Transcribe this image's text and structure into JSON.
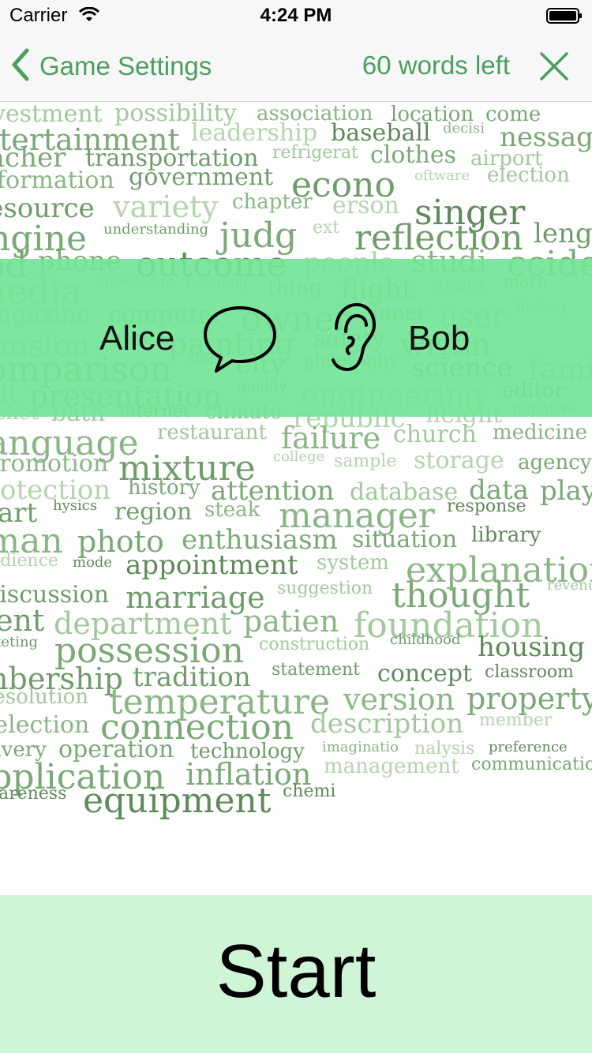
{
  "status_bar": {
    "carrier": "Carrier",
    "time": "4:24 PM"
  },
  "nav": {
    "back_label": "Game Settings",
    "words_left": "60 words left"
  },
  "players": {
    "speaker": "Alice",
    "listener": "Bob"
  },
  "start_label": "Start",
  "colors": {
    "accent": "#4a9f5e",
    "band": "#74e498",
    "start_bg": "#c8f4d2"
  },
  "word_cloud": [
    "vestment",
    "possibility",
    "association",
    "location",
    "come",
    "entertainment",
    "leadership",
    "baseball",
    "decisi",
    "nessage",
    "teacher",
    "transportation",
    "refrigerat",
    "clothes",
    "airport",
    "information",
    "government",
    "econo",
    "oftware",
    "election",
    "resource",
    "variety",
    "chapter",
    "erson",
    "singer",
    "engine",
    "understanding",
    "judg",
    "ext",
    "reflection",
    "length",
    "od",
    "phone",
    "outcome",
    "people",
    "studi",
    "ccident",
    "media",
    "knowledge",
    "teaching",
    "thing",
    "flight",
    "ategory",
    "math",
    "magazine",
    "computer",
    "owner",
    "inner",
    "user",
    "finding",
    "tension",
    "theory",
    "painting",
    "safety",
    "writin",
    "comparison",
    "story",
    "city",
    "philosophy",
    "science",
    "family",
    "unit",
    "presentation",
    "quality",
    "engineering",
    "editor",
    "basket",
    "bath",
    "internet",
    "climate",
    "republic",
    "height",
    "initiative",
    "language",
    "restaurant",
    "failure",
    "church",
    "medicine",
    "promotion",
    "mixture",
    "college",
    "sample",
    "storage",
    "agency",
    "protection",
    "history",
    "attention",
    "database",
    "data",
    "player",
    "heart",
    "hysics",
    "region",
    "steak",
    "manager",
    "response",
    "oman",
    "photo",
    "enthusiasm",
    "situation",
    "library",
    "audience",
    "mode",
    "appointment",
    "system",
    "explanation",
    "discussion",
    "marriage",
    "suggestion",
    "thought",
    "revenue",
    "event",
    "department",
    "patien",
    "foundation",
    "marketing",
    "possession",
    "construction",
    "childhood",
    "housing",
    "embership",
    "tradition",
    "statement",
    "concept",
    "classroom",
    "resolution",
    "temperature",
    "version",
    "property",
    "selection",
    "connection",
    "description",
    "member",
    "delivery",
    "operation",
    "technology",
    "imaginatio",
    "nalysis",
    "preference",
    "application",
    "inflation",
    "management",
    "communication",
    "awareness",
    "equipment",
    "chemi"
  ]
}
